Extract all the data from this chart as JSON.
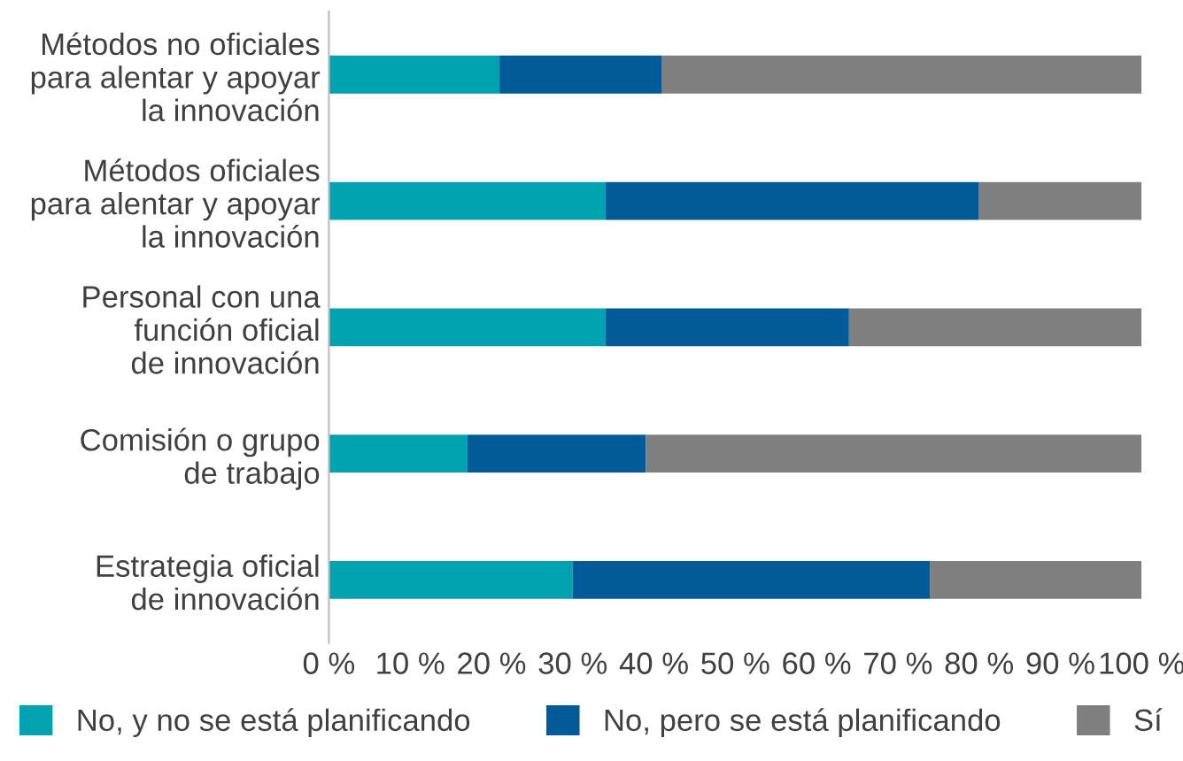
{
  "chart_data": {
    "type": "bar",
    "orientation": "horizontal",
    "stacked": true,
    "categories": [
      "Métodos no oficiales\npara alentar y apoyar\nla innovación",
      "Métodos oficiales\npara alentar y apoyar\nla innovación",
      "Personal con una\nfunción oficial\nde innovación",
      "Comisión o grupo\nde trabajo",
      "Estrategia oficial\nde innovación"
    ],
    "series": [
      {
        "name": "No, y no se está planificando",
        "color": "#00a1b1",
        "values": [
          21,
          34,
          34,
          17,
          30
        ]
      },
      {
        "name": "No, pero se está planificando",
        "color": "#005b98",
        "values": [
          20,
          46,
          30,
          22,
          44
        ]
      },
      {
        "name": "Sí",
        "color": "#7f7f7f",
        "values": [
          59,
          20,
          36,
          61,
          26
        ]
      }
    ],
    "xlim": [
      0,
      100
    ],
    "xticks": [
      {
        "value": 0,
        "label": "0 %"
      },
      {
        "value": 10,
        "label": "10 %"
      },
      {
        "value": 20,
        "label": "20 %"
      },
      {
        "value": 30,
        "label": "30 %"
      },
      {
        "value": 40,
        "label": "40 %"
      },
      {
        "value": 50,
        "label": "50 %"
      },
      {
        "value": 60,
        "label": "60 %"
      },
      {
        "value": 70,
        "label": "70 %"
      },
      {
        "value": 80,
        "label": "80 %"
      },
      {
        "value": 90,
        "label": "90 %"
      },
      {
        "value": 100,
        "label": "100 %"
      }
    ],
    "grid": false,
    "legend": "bottom"
  }
}
